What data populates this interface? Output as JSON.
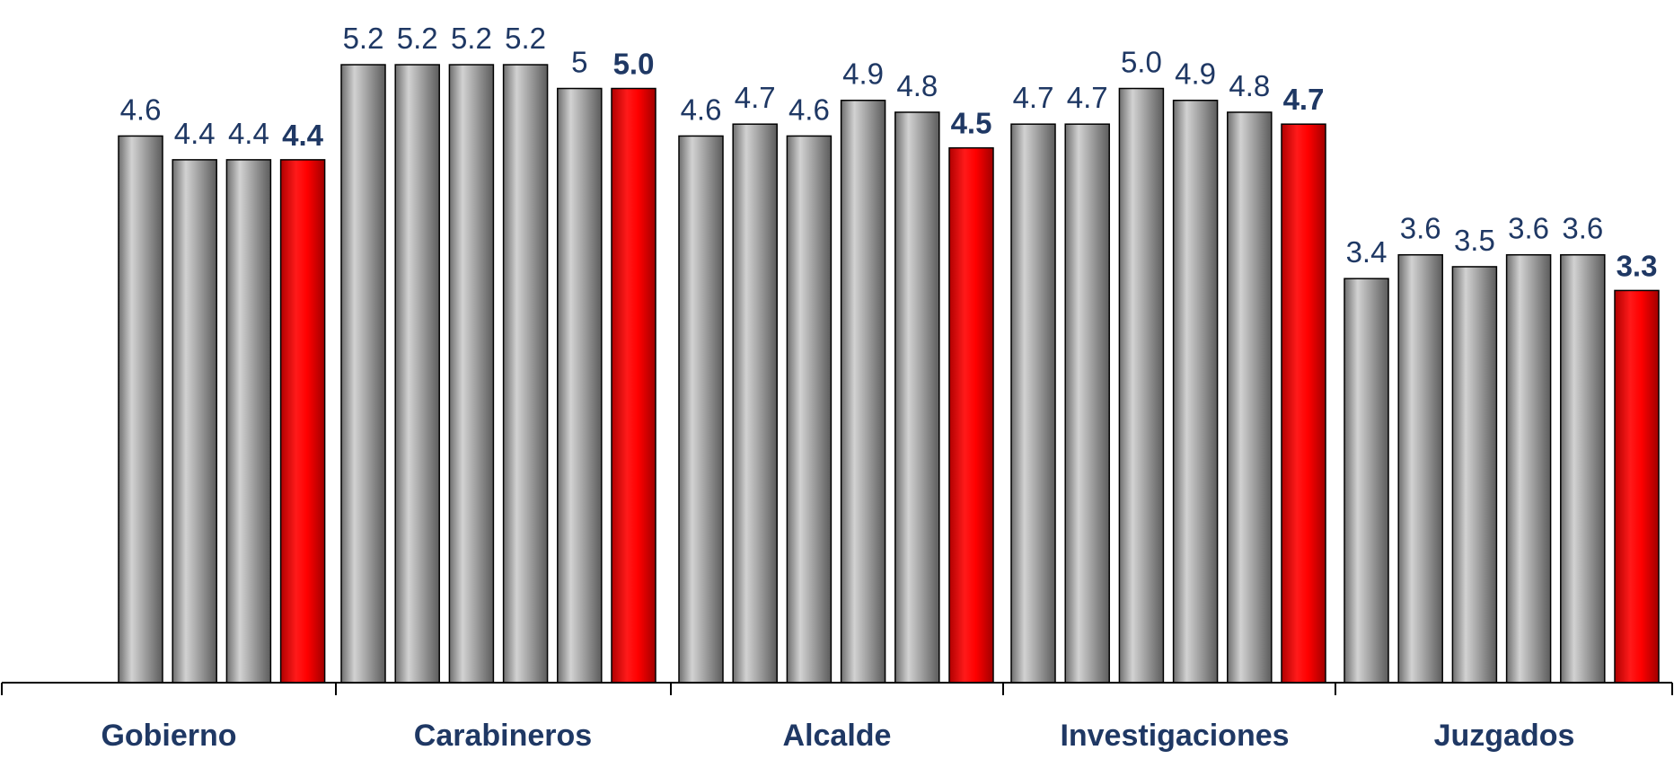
{
  "chart_data": {
    "type": "bar",
    "title": "",
    "xlabel": "",
    "ylabel": "",
    "ylim": [
      0,
      5.5
    ],
    "grid": false,
    "legend": "none",
    "groups": [
      {
        "category": "Gobierno",
        "values": [
          4.6,
          4.4,
          4.4,
          4.4
        ],
        "labels": [
          "4.6",
          "4.4",
          "4.4",
          "4.4"
        ]
      },
      {
        "category": "Carabineros",
        "values": [
          5.2,
          5.2,
          5.2,
          5.2,
          5.0,
          5.0
        ],
        "labels": [
          "5.2",
          "5.2",
          "5.2",
          "5.2",
          "5",
          "5.0"
        ]
      },
      {
        "category": "Alcalde",
        "values": [
          4.6,
          4.7,
          4.6,
          4.9,
          4.8,
          4.5
        ],
        "labels": [
          "4.6",
          "4.7",
          "4.6",
          "4.9",
          "4.8",
          "4.5"
        ]
      },
      {
        "category": "Investigaciones",
        "values": [
          4.7,
          4.7,
          5.0,
          4.9,
          4.8,
          4.7
        ],
        "labels": [
          "4.7",
          "4.7",
          "5.0",
          "4.9",
          "4.8",
          "4.7"
        ]
      },
      {
        "category": "Juzgados",
        "values": [
          3.4,
          3.6,
          3.5,
          3.6,
          3.6,
          3.3
        ],
        "labels": [
          "3.4",
          "3.6",
          "3.5",
          "3.6",
          "3.6",
          "3.3"
        ]
      }
    ],
    "colors": {
      "previous": "#a6a6a6",
      "latest": "#ff0000",
      "label_text": "#1f3864",
      "axis": "#000000"
    }
  }
}
